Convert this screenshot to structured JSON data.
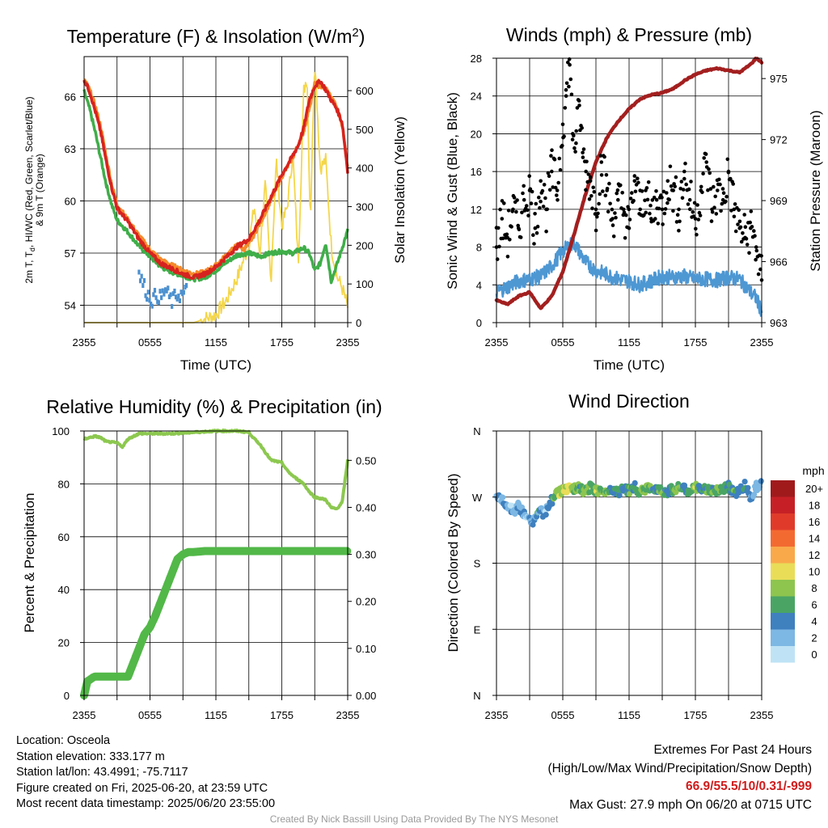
{
  "colors": {
    "temp_red": "#d6231f",
    "temp_orange": "#f58a2a",
    "temp_green": "#3fae49",
    "hiwc_blue": "#4c90cf",
    "solar_yellow": "#f4d64a",
    "gust_black": "#000000",
    "wind_blue": "#4d97d3",
    "pressure_maroon": "#a31f1f",
    "rh_light_green": "#8cc84f",
    "precip_green": "#52b848"
  },
  "panels": {
    "temp": {
      "title_main": "Temperature (F) & Insolation (W/m",
      "title_sup": "2",
      "title_end": ")",
      "ylabel_line1": "2m T, T",
      "ylabel_sub": "d",
      "ylabel_rest": ", HI/WC (Red, Green, Scarlet/Blue)",
      "ylabel_line2": "& 9m T (Orange)",
      "y2label": "Solar Insolation (Yellow)",
      "xlabel": "Time (UTC)"
    },
    "wind": {
      "title": "Winds (mph) & Pressure (mb)",
      "ylabel": "Sonic Wind & Gust (Blue, Black)",
      "y2label": "Station Pressure (Maroon)",
      "xlabel": "Time (UTC)"
    },
    "rh": {
      "title": "Relative Humidity (%) & Precipitation (in)",
      "ylabel": "Percent & Precipitation"
    },
    "dir": {
      "title": "Wind Direction",
      "ylabel": "Direction (Colored By Speed)",
      "legend_title": "mph",
      "legend_labels": [
        "20+",
        "18",
        "16",
        "14",
        "12",
        "10",
        "8",
        "6",
        "4",
        "2",
        "0"
      ],
      "legend_colors": [
        "#a01a1c",
        "#c62026",
        "#e03b2a",
        "#f36a31",
        "#f9a94a",
        "#e9dd58",
        "#8dc54f",
        "#4aa565",
        "#3f80bf",
        "#7db7e3",
        "#bfe3f5"
      ]
    }
  },
  "footer": {
    "location": "Location: Osceola",
    "elevation": "Station elevation: 333.177 m",
    "latlon": "Station lat/lon: 43.4991; -75.7117",
    "created": "Figure created on Fri, 2025-06-20, at 23:59 UTC",
    "recent": "Most recent data timestamp: 2025/06/20 23:55:00",
    "extremes_title": "Extremes For Past 24 Hours",
    "extremes_sub": "(High/Low/Max Wind/Precipitation/Snow Depth)",
    "extremes_values": "66.9/55.5/10/0.31/-999",
    "max_gust": "Max Gust: 27.9 mph On 06/20 at 0715 UTC",
    "credit": "Created By Nick Bassill Using Data Provided By The NYS Mesonet"
  },
  "chart_data": [
    {
      "type": "line",
      "title": "Temperature (F) & Insolation (W/m2)",
      "xlabel": "Time (UTC)",
      "ylabel": "2m T, Td, HI/WC (Red, Green, Scarlet/Blue) & 9m T (Orange)",
      "y2label": "Solar Insolation (Yellow)",
      "x_ticks": [
        "2355",
        "0555",
        "1155",
        "1755",
        "2355"
      ],
      "y_ticks": [
        54,
        57,
        60,
        63,
        66
      ],
      "y2_ticks": [
        0,
        100,
        200,
        300,
        400,
        500,
        600
      ],
      "ylim": [
        53.0,
        68.3
      ],
      "y2lim": [
        0,
        688
      ],
      "series": [
        {
          "name": "2m T",
          "color": "#d6231f",
          "x": [
            0,
            0.5,
            1,
            1.5,
            2,
            2.5,
            3,
            3.5,
            4,
            5,
            6,
            7,
            8,
            9,
            10,
            11,
            12,
            13,
            14,
            15,
            16,
            17,
            18,
            19,
            19.5,
            20,
            20.5,
            21,
            21.5,
            22,
            22.5,
            23,
            23.5,
            24
          ],
          "values": [
            67.0,
            66.3,
            65.2,
            64.0,
            62.3,
            60.8,
            59.6,
            59.2,
            58.8,
            57.8,
            57.0,
            56.4,
            56.1,
            55.8,
            55.6,
            55.8,
            56.2,
            56.8,
            57.4,
            57.8,
            58.9,
            60.2,
            61.5,
            62.6,
            63.2,
            64.2,
            65.8,
            66.6,
            66.9,
            66.4,
            65.8,
            65.3,
            64.5,
            61.7
          ]
        },
        {
          "name": "9m T",
          "color": "#f58a2a",
          "x": [
            0,
            0.5,
            1,
            1.5,
            2,
            2.5,
            3,
            4,
            5,
            6,
            7,
            8,
            9,
            10,
            11,
            12,
            13,
            14,
            14.5,
            15,
            16,
            17,
            18,
            19,
            20,
            21,
            22,
            23,
            23.5,
            24
          ],
          "values": [
            67.0,
            66.4,
            65.5,
            64.3,
            62.6,
            61.0,
            59.8,
            58.9,
            58.0,
            57.2,
            56.6,
            56.3,
            56.0,
            55.8,
            55.9,
            56.3,
            56.9,
            57.5,
            57.2,
            57.5,
            58.7,
            60.0,
            61.4,
            62.5,
            64.0,
            66.7,
            66.5,
            65.4,
            64.4,
            61.9
          ]
        },
        {
          "name": "2m Td",
          "color": "#3fae49",
          "x": [
            0,
            0.5,
            1,
            1.5,
            2,
            2.5,
            3,
            4,
            5,
            6,
            7,
            8,
            9,
            10,
            11,
            12,
            13,
            14,
            15,
            16,
            17,
            18,
            19,
            20,
            20.5,
            21,
            21.5,
            22,
            22.5,
            23,
            24
          ],
          "values": [
            66.3,
            65.3,
            64.0,
            62.5,
            61.0,
            59.8,
            58.9,
            58.2,
            57.4,
            56.8,
            56.2,
            55.9,
            55.7,
            55.5,
            55.6,
            56.0,
            56.5,
            56.9,
            57.0,
            56.8,
            57.0,
            57.1,
            57.0,
            57.3,
            57.0,
            56.0,
            56.4,
            57.6,
            55.4,
            56.3,
            58.3
          ]
        },
        {
          "name": "HI/WC",
          "color": "#4c90cf",
          "x": [
            5,
            5.4,
            5.8,
            6.2,
            6.6,
            7.0,
            7.4,
            8.0,
            8.4,
            9.0,
            9.4
          ],
          "values": [
            55.8,
            55.2,
            54.6,
            54.3,
            54.6,
            54.4,
            54.9,
            54.2,
            54.6,
            54.6,
            54.9
          ]
        },
        {
          "name": "Solar Insolation",
          "color": "#f4d64a",
          "x": [
            0,
            2,
            4,
            6,
            8,
            9,
            10,
            11,
            12,
            13,
            14,
            15,
            15.5,
            16,
            16.5,
            17,
            17.5,
            18,
            18.5,
            19,
            19.5,
            20,
            20.3,
            20.6,
            21,
            21.5,
            22,
            22.5,
            23,
            23.5,
            24
          ],
          "values": [
            0,
            0,
            0,
            0,
            0,
            0,
            0,
            10,
            20,
            60,
            120,
            200,
            300,
            180,
            360,
            100,
            420,
            250,
            300,
            440,
            150,
            600,
            640,
            260,
            690,
            400,
            420,
            200,
            120,
            90,
            40
          ]
        }
      ]
    },
    {
      "type": "line",
      "title": "Winds (mph) & Pressure (mb)",
      "xlabel": "Time (UTC)",
      "ylabel": "Sonic Wind & Gust (Blue, Black)",
      "y2label": "Station Pressure (Maroon)",
      "x_ticks": [
        "2355",
        "0555",
        "1155",
        "1755",
        "2355"
      ],
      "y_ticks": [
        0,
        4,
        8,
        12,
        16,
        20,
        24,
        28
      ],
      "y2_ticks": [
        963,
        966,
        969,
        972,
        975
      ],
      "ylim": [
        0,
        28
      ],
      "y2lim": [
        963,
        976
      ],
      "series": [
        {
          "name": "Sonic Wind",
          "color": "#4d97d3",
          "x": [
            0,
            1,
            2,
            3,
            4,
            5,
            6,
            7,
            8,
            9,
            10,
            11,
            12,
            13,
            14,
            15,
            16,
            17,
            18,
            19,
            20,
            21,
            22,
            23,
            23.5,
            24
          ],
          "values": [
            3.2,
            3.8,
            4.4,
            4.6,
            4.9,
            6.0,
            7.6,
            8.5,
            6.5,
            5.5,
            5.1,
            4.6,
            4.4,
            4.0,
            4.4,
            4.9,
            4.8,
            4.9,
            4.6,
            4.6,
            4.5,
            4.8,
            4.6,
            3.2,
            2.6,
            1.2
          ]
        },
        {
          "name": "Gust",
          "color": "#000000",
          "x": [
            0,
            0.5,
            1,
            1.5,
            2,
            2.5,
            3,
            3.5,
            4,
            4.5,
            5,
            5.5,
            6,
            6.3,
            6.6,
            6.9,
            7.2,
            7.5,
            7.8,
            8.1,
            8.5,
            9,
            9.5,
            10,
            10.5,
            11,
            11.5,
            12,
            12.5,
            13,
            13.5,
            14,
            14.5,
            15,
            15.5,
            16,
            16.5,
            17,
            17.5,
            18,
            18.5,
            19,
            19.5,
            20,
            20.5,
            21,
            21.5,
            22,
            22.5,
            23,
            23.5,
            24
          ],
          "values": [
            8,
            11,
            9,
            12,
            10,
            13,
            14,
            10,
            15,
            12,
            16,
            14,
            21,
            24,
            27.9,
            20,
            19,
            23,
            18,
            16,
            15,
            12,
            17,
            14,
            11,
            13,
            12,
            10,
            15,
            12,
            14,
            11,
            13,
            12,
            15,
            14,
            12,
            16,
            13,
            11,
            14,
            17,
            12,
            14,
            13,
            16,
            12,
            10,
            9,
            10,
            8,
            4.5
          ]
        },
        {
          "name": "Station Pressure",
          "color": "#a31f1f",
          "x": [
            0,
            1,
            2,
            3,
            4,
            5,
            6,
            7,
            8,
            9,
            10,
            11,
            12,
            13,
            14,
            15,
            16,
            17,
            18,
            19,
            20,
            21,
            22,
            23,
            23.5,
            24
          ],
          "values": [
            964.1,
            963.9,
            964.3,
            964.5,
            963.7,
            964.3,
            965.5,
            967.3,
            969.2,
            970.9,
            972.1,
            972.9,
            973.5,
            974.0,
            974.2,
            974.3,
            974.5,
            974.9,
            975.2,
            975.4,
            975.5,
            975.4,
            975.3,
            975.7,
            976.0,
            975.8
          ]
        }
      ]
    },
    {
      "type": "line",
      "title": "Relative Humidity (%) & Precipitation (in)",
      "ylabel": "Percent & Precipitation",
      "x_ticks": [
        "2355",
        "0555",
        "1155",
        "1755",
        "2355"
      ],
      "y_ticks": [
        0,
        20,
        40,
        60,
        80,
        100
      ],
      "y2_ticks": [
        "0.00",
        "0.10",
        "0.20",
        "0.30",
        "0.40",
        "0.50"
      ],
      "ylim": [
        0,
        100
      ],
      "y2lim": [
        0,
        0.5625
      ],
      "series": [
        {
          "name": "Relative Humidity",
          "color": "#8cc84f",
          "x": [
            0,
            0.5,
            1,
            1.5,
            2,
            3,
            3.5,
            4,
            4.5,
            5,
            6,
            8,
            10,
            12,
            14,
            15,
            15.5,
            16,
            16.5,
            17,
            18,
            18.5,
            19,
            20,
            20.5,
            21,
            22,
            22.5,
            23,
            23.5,
            24
          ],
          "values": [
            97,
            97.5,
            98,
            97.5,
            96,
            95.5,
            94,
            97,
            98,
            99,
            99,
            99,
            99.5,
            100,
            100,
            99.5,
            97,
            95,
            92,
            89,
            88,
            85,
            83,
            80,
            77,
            75,
            74,
            71,
            70.5,
            73,
            89
          ]
        },
        {
          "name": "Precipitation",
          "color": "#52b848",
          "x": [
            0,
            0.3,
            0.5,
            0.8,
            1,
            2,
            3,
            4,
            4.5,
            5,
            5.5,
            6,
            6.5,
            7,
            7.5,
            8,
            8.5,
            9,
            9.5,
            10,
            11,
            12,
            13,
            14,
            15,
            16,
            17,
            18,
            19,
            20,
            21,
            22,
            23,
            24
          ],
          "values": [
            0,
            0.03,
            0.033,
            0.038,
            0.04,
            0.04,
            0.04,
            0.04,
            0.07,
            0.1,
            0.13,
            0.145,
            0.17,
            0.2,
            0.23,
            0.26,
            0.29,
            0.3,
            0.305,
            0.305,
            0.307,
            0.307,
            0.307,
            0.307,
            0.307,
            0.307,
            0.307,
            0.307,
            0.307,
            0.307,
            0.307,
            0.307,
            0.307,
            0.307
          ]
        }
      ]
    },
    {
      "type": "scatter",
      "title": "Wind Direction",
      "ylabel": "Direction (Colored By Speed)",
      "x_ticks": [
        "2355",
        "0555",
        "1155",
        "1755",
        "2355"
      ],
      "y_ticks": [
        "N",
        "E",
        "S",
        "W",
        "N"
      ],
      "ylim": [
        0,
        360
      ],
      "series": [
        {
          "name": "Wind Direction",
          "x": [
            0,
            0.4,
            0.8,
            1.2,
            1.6,
            2.0,
            2.4,
            2.8,
            3.2,
            3.6,
            4.0,
            4.4,
            4.8,
            5.2,
            5.6,
            6.0,
            6.4,
            6.8,
            7.2,
            7.6,
            8.0,
            8.5,
            9,
            9.5,
            10,
            10.5,
            11,
            11.5,
            12,
            12.5,
            13,
            13.5,
            14,
            14.5,
            15,
            15.5,
            16,
            16.5,
            17,
            17.5,
            18,
            18.5,
            19,
            19.5,
            20,
            20.5,
            21,
            21.5,
            22,
            22.5,
            23,
            23.5,
            24
          ],
          "values": [
            272,
            268,
            262,
            255,
            250,
            258,
            248,
            240,
            236,
            244,
            252,
            246,
            262,
            270,
            276,
            280,
            282,
            278,
            283,
            281,
            277,
            283,
            280,
            276,
            279,
            282,
            277,
            281,
            279,
            284,
            276,
            282,
            280,
            283,
            279,
            277,
            281,
            284,
            280,
            278,
            283,
            279,
            282,
            277,
            281,
            280,
            284,
            276,
            279,
            286,
            270,
            284,
            290
          ],
          "speed": [
            3,
            2,
            3,
            2,
            2,
            4,
            3,
            2,
            3,
            4,
            4,
            2,
            4,
            6,
            8,
            9,
            10,
            8,
            8,
            6,
            8,
            6,
            8,
            6,
            8,
            4,
            6,
            4,
            6,
            4,
            6,
            8,
            6,
            4,
            8,
            4,
            6,
            8,
            4,
            6,
            8,
            4,
            6,
            6,
            8,
            6,
            4,
            6,
            4,
            4,
            4,
            3,
            2
          ]
        }
      ]
    }
  ]
}
